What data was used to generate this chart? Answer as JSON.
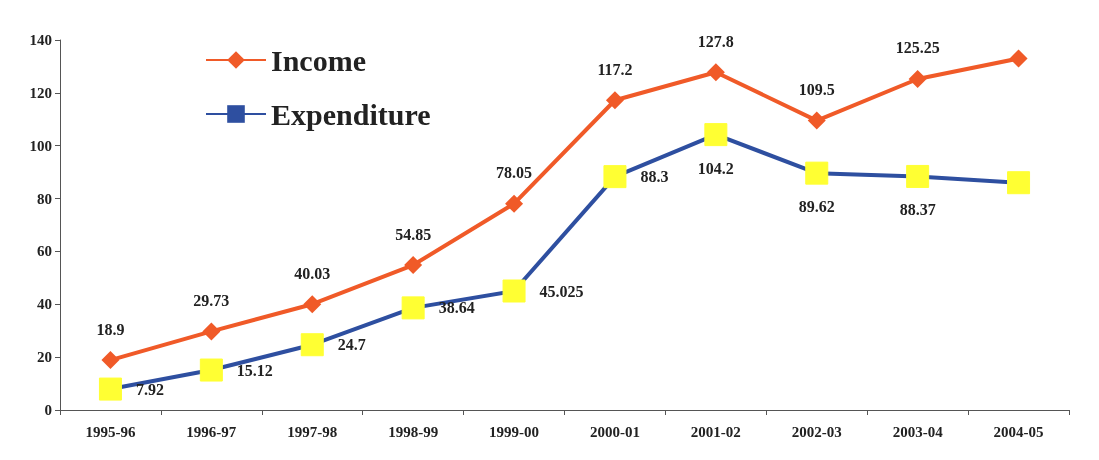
{
  "chart_data": {
    "type": "line",
    "categories": [
      "1995-96",
      "1996-97",
      "1997-98",
      "1998-99",
      "1999-00",
      "2000-01",
      "2001-02",
      "2002-03",
      "2003-04",
      "2004-05"
    ],
    "series": [
      {
        "name": "Income",
        "color": "#f05a28",
        "marker": "diamond",
        "values": [
          18.9,
          29.73,
          40.03,
          54.85,
          78.05,
          117.2,
          127.8,
          109.5,
          125.25,
          133
        ],
        "value_labels": [
          "18.9",
          "29.73",
          "40.03",
          "54.85",
          "78.05",
          "117.2",
          "127.8",
          "109.5",
          "125.25",
          null
        ]
      },
      {
        "name": "Expenditure",
        "color": "#2e4fa0",
        "marker": "square",
        "colors": [
          "#ffff33",
          "#ffff33",
          "#ffff33",
          "#ffff33",
          "#ffff33",
          "#ffff33",
          "#ffff33",
          "#ffff33",
          "#ffff33",
          "#ffff33"
        ],
        "values": [
          7.92,
          15.12,
          24.7,
          38.64,
          45.025,
          88.3,
          104.2,
          89.62,
          88.37,
          86
        ],
        "value_labels": [
          "7.92",
          "15.12",
          "24.7",
          "38.64",
          "45.025",
          "88.3",
          "104.2",
          "89.62",
          "88.37",
          null
        ]
      }
    ],
    "ylim": [
      0,
      140
    ],
    "yticks": [
      0,
      20,
      40,
      60,
      80,
      100,
      120,
      140
    ],
    "grid": false,
    "legend": "top left"
  }
}
